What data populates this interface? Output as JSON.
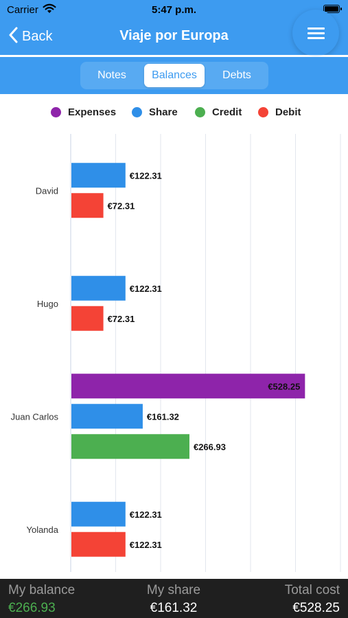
{
  "status_bar": {
    "carrier": "Carrier",
    "time": "5:47 p.m."
  },
  "nav": {
    "back_label": "Back",
    "title": "Viaje por Europa"
  },
  "tabs": [
    {
      "label": "Notes",
      "active": false
    },
    {
      "label": "Balances",
      "active": true
    },
    {
      "label": "Debts",
      "active": false
    }
  ],
  "colors": {
    "header": "#3d9bf0",
    "expenses": "#8e24aa",
    "share": "#2f8fe8",
    "credit": "#4caf50",
    "debit": "#f44336",
    "balance_positive": "#4caf50"
  },
  "chart_data": {
    "type": "bar",
    "orientation": "horizontal",
    "categories": [
      "David",
      "Hugo",
      "Juan Carlos",
      "Yolanda"
    ],
    "series": [
      {
        "name": "Expenses",
        "color": "#8e24aa",
        "values": [
          0,
          0,
          528.25,
          0
        ]
      },
      {
        "name": "Share",
        "color": "#2f8fe8",
        "values": [
          122.31,
          122.31,
          161.32,
          122.31
        ]
      },
      {
        "name": "Credit",
        "color": "#4caf50",
        "values": [
          0,
          0,
          266.93,
          0
        ]
      },
      {
        "name": "Debit",
        "color": "#f44336",
        "values": [
          72.31,
          72.31,
          0,
          122.31
        ]
      }
    ],
    "value_prefix": "€",
    "xlim": [
      0,
      610
    ],
    "grid": true,
    "legend": "top"
  },
  "summary": {
    "my_balance_label": "My balance",
    "my_balance_value": "€266.93",
    "my_share_label": "My share",
    "my_share_value": "€161.32",
    "total_cost_label": "Total cost",
    "total_cost_value": "€528.25"
  }
}
